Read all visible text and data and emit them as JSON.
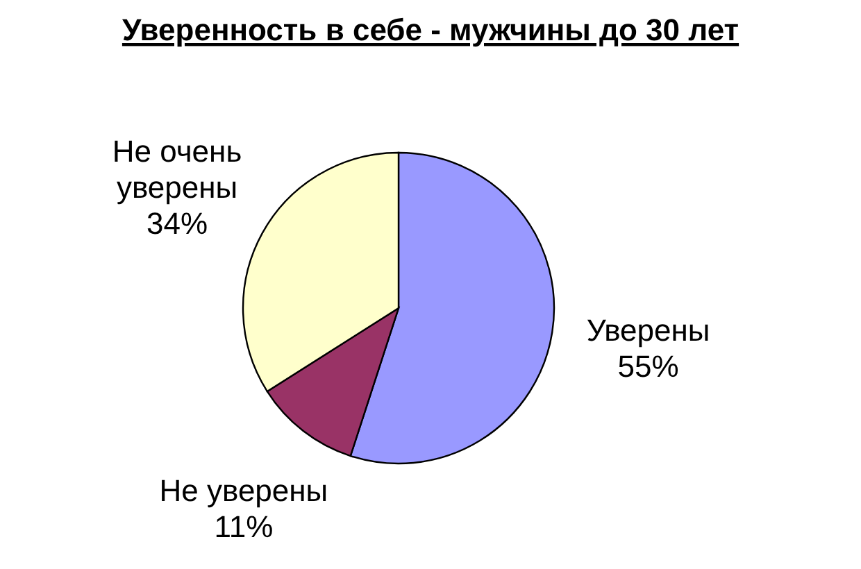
{
  "chart_data": {
    "type": "pie",
    "title": "Уверенность в себе - мужчины до 30 лет",
    "categories": [
      "Уверены",
      "Не уверены",
      "Не очень уверены"
    ],
    "values": [
      55,
      11,
      34
    ],
    "colors": [
      "#9999ff",
      "#993366",
      "#ffffcc"
    ],
    "value_labels": [
      "55%",
      "11%",
      "34%"
    ]
  }
}
